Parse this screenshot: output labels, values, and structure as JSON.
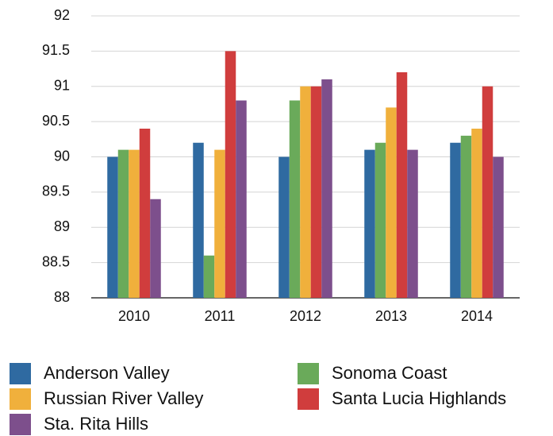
{
  "chart_data": {
    "type": "bar",
    "categories": [
      "2010",
      "2011",
      "2012",
      "2013",
      "2014"
    ],
    "series": [
      {
        "name": "Anderson Valley",
        "color": "#2f6aa1",
        "values": [
          90,
          90.2,
          90,
          90.1,
          90.2
        ]
      },
      {
        "name": "Sonoma Coast",
        "color": "#6aaa5a",
        "values": [
          90.1,
          88.6,
          90.8,
          90.2,
          90.3
        ]
      },
      {
        "name": "Russian River Valley",
        "color": "#f0b03c",
        "values": [
          90.1,
          90.1,
          91,
          90.7,
          90.4
        ]
      },
      {
        "name": "Santa Lucia Highlands",
        "color": "#d03d3d",
        "values": [
          90.4,
          91.5,
          91,
          91.2,
          91
        ]
      },
      {
        "name": "Sta. Rita Hills",
        "color": "#7d4f8c",
        "values": [
          89.4,
          90.8,
          91.1,
          90.1,
          90
        ]
      }
    ],
    "ylim": [
      88,
      92
    ],
    "yticks": [
      88,
      88.5,
      89,
      89.5,
      90,
      90.5,
      91,
      91.5,
      92
    ],
    "grid": true
  }
}
